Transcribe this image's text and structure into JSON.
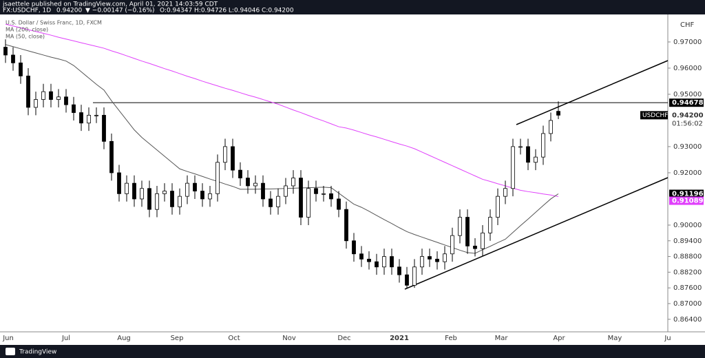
{
  "header": {
    "publisher": "jsaettele published on TradingView.com, April 01, 2021 14:03:59 CDT",
    "symbol": "FX:USDCHF, 1D",
    "last": "0.94200",
    "change": "▼ −0.00147 (−0.16%)",
    "ohlc": "O:0.94347 H:0.94726 L:0.94046 C:0.94200"
  },
  "chart_data": {
    "type": "candlestick",
    "title": "U.S. Dollar / Swiss Franc, 1D, FXCM",
    "currency": "CHF",
    "up_color": "#ffffff",
    "down_color": "#000000",
    "open": [
      0.968,
      0.965,
      0.962,
      0.957,
      0.945,
      0.948,
      0.951,
      0.948,
      0.949,
      0.946,
      0.943,
      0.939,
      0.942,
      0.942,
      0.932,
      0.92,
      0.912,
      0.916,
      0.91,
      0.914,
      0.906,
      0.912,
      0.913,
      0.907,
      0.911,
      0.916,
      0.913,
      0.91,
      0.912,
      0.924,
      0.93,
      0.921,
      0.918,
      0.915,
      0.916,
      0.91,
      0.907,
      0.911,
      0.915,
      0.918,
      0.903,
      0.914,
      0.912,
      0.912,
      0.91,
      0.906,
      0.894,
      0.889,
      0.887,
      0.886,
      0.884,
      0.888,
      0.884,
      0.881,
      0.877,
      0.884,
      0.888,
      0.887,
      0.886,
      0.889,
      0.896,
      0.903,
      0.892,
      0.891,
      0.897,
      0.903,
      0.911,
      0.914,
      0.93,
      0.93,
      0.924,
      0.926,
      0.935,
      0.9435
    ],
    "high": [
      0.971,
      0.968,
      0.965,
      0.96,
      0.951,
      0.954,
      0.954,
      0.952,
      0.952,
      0.949,
      0.946,
      0.945,
      0.945,
      0.945,
      0.935,
      0.923,
      0.919,
      0.919,
      0.917,
      0.917,
      0.915,
      0.916,
      0.916,
      0.914,
      0.919,
      0.919,
      0.916,
      0.915,
      0.927,
      0.933,
      0.933,
      0.924,
      0.921,
      0.919,
      0.919,
      0.913,
      0.914,
      0.918,
      0.921,
      0.921,
      0.917,
      0.917,
      0.915,
      0.915,
      0.913,
      0.909,
      0.897,
      0.892,
      0.89,
      0.889,
      0.891,
      0.891,
      0.887,
      0.884,
      0.887,
      0.891,
      0.891,
      0.89,
      0.892,
      0.899,
      0.906,
      0.906,
      0.895,
      0.9,
      0.906,
      0.914,
      0.917,
      0.933,
      0.933,
      0.933,
      0.929,
      0.938,
      0.943,
      0.9473
    ],
    "low": [
      0.962,
      0.959,
      0.954,
      0.942,
      0.942,
      0.945,
      0.945,
      0.945,
      0.943,
      0.94,
      0.936,
      0.936,
      0.939,
      0.929,
      0.917,
      0.909,
      0.909,
      0.907,
      0.907,
      0.903,
      0.903,
      0.909,
      0.904,
      0.904,
      0.908,
      0.91,
      0.907,
      0.907,
      0.909,
      0.921,
      0.918,
      0.915,
      0.912,
      0.912,
      0.907,
      0.904,
      0.904,
      0.908,
      0.912,
      0.9,
      0.9,
      0.909,
      0.909,
      0.907,
      0.903,
      0.891,
      0.886,
      0.884,
      0.883,
      0.881,
      0.881,
      0.881,
      0.878,
      0.8757,
      0.876,
      0.881,
      0.884,
      0.883,
      0.883,
      0.886,
      0.893,
      0.889,
      0.888,
      0.888,
      0.894,
      0.9,
      0.908,
      0.911,
      0.927,
      0.921,
      0.921,
      0.923,
      0.932,
      0.9405
    ],
    "close": [
      0.965,
      0.962,
      0.957,
      0.945,
      0.948,
      0.951,
      0.948,
      0.949,
      0.946,
      0.943,
      0.939,
      0.942,
      0.942,
      0.932,
      0.92,
      0.912,
      0.916,
      0.91,
      0.914,
      0.906,
      0.912,
      0.913,
      0.907,
      0.911,
      0.916,
      0.913,
      0.91,
      0.912,
      0.924,
      0.93,
      0.921,
      0.918,
      0.915,
      0.916,
      0.91,
      0.907,
      0.911,
      0.915,
      0.918,
      0.903,
      0.914,
      0.912,
      0.912,
      0.91,
      0.906,
      0.894,
      0.889,
      0.887,
      0.886,
      0.884,
      0.888,
      0.884,
      0.881,
      0.877,
      0.884,
      0.888,
      0.887,
      0.886,
      0.889,
      0.896,
      0.903,
      0.892,
      0.891,
      0.897,
      0.903,
      0.911,
      0.914,
      0.93,
      0.93,
      0.924,
      0.926,
      0.935,
      0.94,
      0.942
    ],
    "series": [
      {
        "name": "MA (200, close)",
        "color": "#e040fb",
        "last_label": {
          "value": 0.91089,
          "label": "0.91089"
        },
        "values": [
          0.9768,
          0.9761,
          0.9754,
          0.9747,
          0.974,
          0.9733,
          0.9726,
          0.9718,
          0.9711,
          0.9704,
          0.9697,
          0.969,
          0.9683,
          0.9676,
          0.9666,
          0.9657,
          0.9647,
          0.9637,
          0.9627,
          0.9618,
          0.9608,
          0.9598,
          0.9589,
          0.9579,
          0.9569,
          0.956,
          0.955,
          0.9541,
          0.9532,
          0.9523,
          0.9515,
          0.9506,
          0.9497,
          0.9489,
          0.948,
          0.9471,
          0.9462,
          0.9451,
          0.944,
          0.943,
          0.9419,
          0.9408,
          0.9398,
          0.9387,
          0.9376,
          0.9371,
          0.9363,
          0.9354,
          0.9345,
          0.9337,
          0.9328,
          0.9319,
          0.931,
          0.9302,
          0.9292,
          0.9279,
          0.9266,
          0.9253,
          0.924,
          0.9227,
          0.9214,
          0.9201,
          0.9188,
          0.9175,
          0.9167,
          0.9158,
          0.915,
          0.9141,
          0.9133,
          0.9128,
          0.9124,
          0.9119,
          0.9115,
          0.91089
        ]
      },
      {
        "name": "MA (50, close)",
        "color": "#555555",
        "last_label": {
          "value": 0.91196,
          "label": "0.91196"
        },
        "values": [
          0.969,
          0.9682,
          0.9674,
          0.9666,
          0.9658,
          0.965,
          0.9642,
          0.9635,
          0.9627,
          0.961,
          0.9586,
          0.9562,
          0.9538,
          0.9516,
          0.9475,
          0.9438,
          0.9401,
          0.9364,
          0.9335,
          0.9311,
          0.9287,
          0.9263,
          0.9239,
          0.9215,
          0.9205,
          0.9196,
          0.9186,
          0.9176,
          0.9167,
          0.9157,
          0.9148,
          0.9137,
          0.9137,
          0.9137,
          0.9138,
          0.9138,
          0.9139,
          0.914,
          0.9141,
          0.9142,
          0.9143,
          0.9144,
          0.9145,
          0.9143,
          0.9122,
          0.9101,
          0.908,
          0.9068,
          0.9053,
          0.9037,
          0.9021,
          0.9006,
          0.899,
          0.8975,
          0.8964,
          0.8954,
          0.8944,
          0.8934,
          0.8924,
          0.8914,
          0.8904,
          0.8895,
          0.8892,
          0.8906,
          0.8919,
          0.8933,
          0.8946,
          0.8972,
          0.8998,
          0.9023,
          0.9049,
          0.9075,
          0.91,
          0.91196
        ]
      }
    ],
    "x_labels": [
      "Jun",
      "Jul",
      "Aug",
      "Sep",
      "Oct",
      "Nov",
      "Dec",
      "2021",
      "Feb",
      "Mar",
      "Apr",
      "May",
      "Ju"
    ],
    "ylim": [
      0.8592,
      0.9813
    ],
    "yticks": [
      {
        "value": 0.97,
        "label": "0.97000"
      },
      {
        "value": 0.96,
        "label": "0.96000"
      },
      {
        "value": 0.95,
        "label": "0.95000"
      },
      {
        "value": 0.93,
        "label": "0.93000"
      },
      {
        "value": 0.92,
        "label": "0.92000"
      },
      {
        "value": 0.9,
        "label": "0.90000"
      },
      {
        "value": 0.894,
        "label": "0.89400"
      },
      {
        "value": 0.888,
        "label": "0.88800"
      },
      {
        "value": 0.882,
        "label": "0.88200"
      },
      {
        "value": 0.876,
        "label": "0.87600"
      },
      {
        "value": 0.87,
        "label": "0.87000"
      },
      {
        "value": 0.864,
        "label": "0.86400"
      }
    ],
    "level": {
      "value": 0.94678,
      "label": "0.94678"
    },
    "last_price": {
      "value": 0.942,
      "label": "0.94200"
    },
    "symbol_label": "USDCHF",
    "countdown": "01:56:02",
    "grid": false
  },
  "footer": {
    "brand": "TradingView"
  }
}
